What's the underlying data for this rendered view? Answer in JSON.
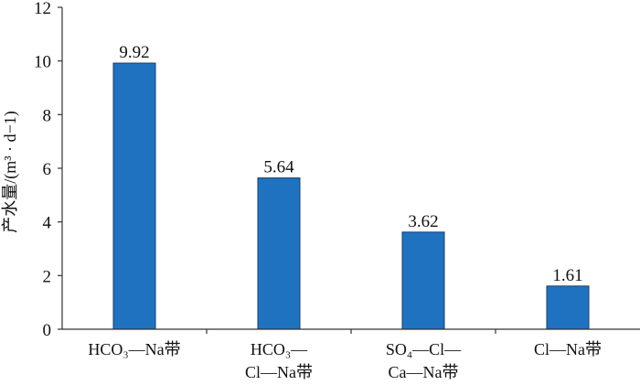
{
  "chart_data": {
    "type": "bar",
    "categories": [
      [
        "HCO₃—Na带"
      ],
      [
        "HCO₃—",
        "Cl—Na带"
      ],
      [
        "SO₄—Cl—",
        "Ca—Na带"
      ],
      [
        "Cl—Na带"
      ]
    ],
    "values": [
      9.92,
      5.64,
      3.62,
      1.61
    ],
    "data_labels": [
      "9.92",
      "5.64",
      "3.62",
      "1.61"
    ],
    "ylabel": "产水量/(m³ · d−1)",
    "ylim": [
      0,
      12
    ],
    "yticks": [
      0,
      2,
      4,
      6,
      8,
      10,
      12
    ],
    "bar_color": "#1f72c0",
    "grid": false,
    "legend": "none"
  }
}
